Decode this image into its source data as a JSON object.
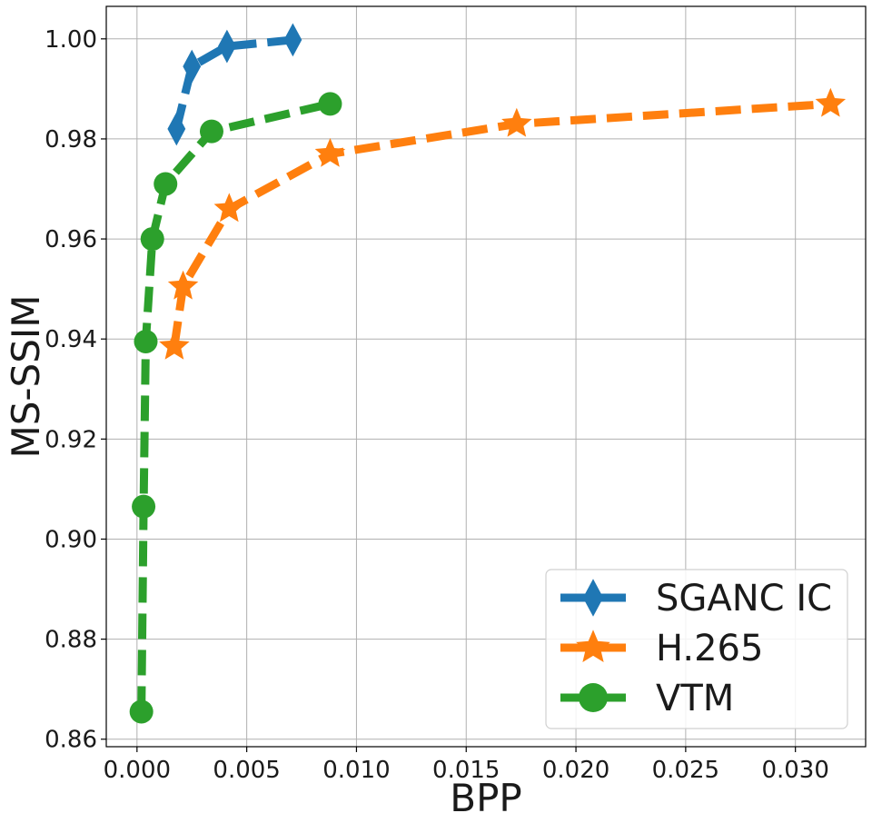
{
  "chart_data": {
    "type": "line",
    "xlabel": "BPP",
    "ylabel": "MS-SSIM",
    "xlim": [
      -0.0014,
      0.0332
    ],
    "ylim": [
      0.8585,
      1.0065
    ],
    "xticks": [
      0.0,
      0.005,
      0.01,
      0.015,
      0.02,
      0.025,
      0.03
    ],
    "xtick_labels": [
      "0.000",
      "0.005",
      "0.010",
      "0.015",
      "0.020",
      "0.025",
      "0.030"
    ],
    "yticks": [
      0.86,
      0.88,
      0.9,
      0.92,
      0.94,
      0.96,
      0.98,
      1.0
    ],
    "ytick_labels": [
      "0.86",
      "0.88",
      "0.90",
      "0.92",
      "0.94",
      "0.96",
      "0.98",
      "1.00"
    ],
    "grid": true,
    "legend_position": "bottom-right",
    "series": [
      {
        "name": "SGANC IC",
        "color": "#1f77b4",
        "marker": "diamond",
        "x": [
          0.0018,
          0.0025,
          0.0041,
          0.0071
        ],
        "y": [
          0.982,
          0.9945,
          0.9985,
          0.9998
        ]
      },
      {
        "name": "H.265",
        "color": "#ff7f0e",
        "marker": "star",
        "x": [
          0.0017,
          0.0021,
          0.0042,
          0.0088,
          0.0173,
          0.0316
        ],
        "y": [
          0.9385,
          0.9505,
          0.966,
          0.977,
          0.983,
          0.987
        ]
      },
      {
        "name": "VTM",
        "color": "#2ca02c",
        "marker": "circle",
        "x": [
          0.0002,
          0.0003,
          0.0004,
          0.0007,
          0.0013,
          0.0034,
          0.0088
        ],
        "y": [
          0.8655,
          0.9065,
          0.9395,
          0.96,
          0.971,
          0.9815,
          0.987
        ]
      }
    ]
  }
}
